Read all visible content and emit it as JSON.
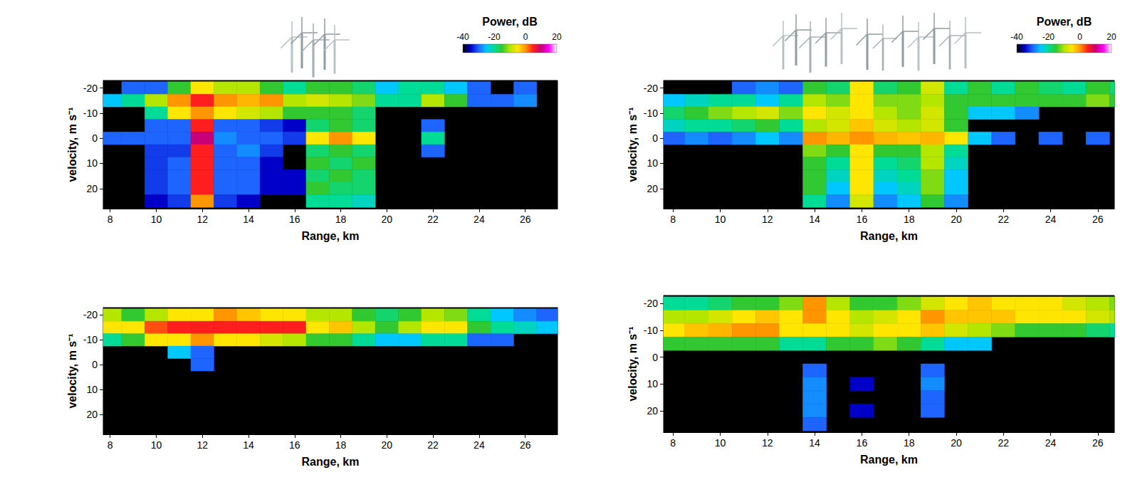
{
  "chart_data": [
    {
      "type": "heatmap",
      "xlabel": "Range, km",
      "ylabel": "velocity, m s⁻¹",
      "xlim": [
        7.7,
        27.4
      ],
      "xticks": [
        8,
        10,
        12,
        14,
        16,
        18,
        20,
        22,
        24,
        26
      ],
      "ylim": [
        -23,
        28
      ],
      "yticks": [
        -20,
        -10,
        0,
        10,
        20
      ],
      "x": [
        8,
        9,
        10,
        11,
        12,
        13,
        14,
        15,
        16,
        17,
        18,
        19,
        20,
        21,
        22,
        23,
        24,
        25,
        26,
        27
      ],
      "y": [
        -20,
        -15,
        -10,
        -5,
        0,
        5,
        10,
        15,
        20,
        25
      ],
      "power": [
        [
          null,
          -30,
          -30,
          -15,
          -5,
          -10,
          -10,
          -15,
          -20,
          -15,
          -15,
          -18,
          -25,
          -20,
          -20,
          -25,
          -30,
          null,
          -30,
          null
        ],
        [
          -25,
          -20,
          -10,
          0,
          5,
          0,
          -2,
          0,
          -10,
          -8,
          -10,
          -12,
          -20,
          -20,
          -10,
          -15,
          -30,
          -30,
          -28,
          null
        ],
        [
          null,
          null,
          -20,
          -5,
          0,
          -5,
          -8,
          -10,
          -15,
          -15,
          -15,
          -18,
          null,
          null,
          null,
          null,
          null,
          null,
          null,
          null
        ],
        [
          null,
          null,
          -30,
          -30,
          5,
          -30,
          -30,
          -32,
          -35,
          -18,
          -15,
          -18,
          null,
          null,
          -30,
          null,
          null,
          null,
          null,
          null
        ],
        [
          -30,
          -30,
          -30,
          -30,
          10,
          -28,
          -30,
          -30,
          -32,
          -5,
          0,
          -5,
          null,
          null,
          -20,
          null,
          null,
          null,
          null,
          null
        ],
        [
          null,
          null,
          -32,
          -32,
          5,
          -30,
          -28,
          -32,
          null,
          -18,
          -15,
          -18,
          null,
          null,
          -30,
          null,
          null,
          null,
          null,
          null
        ],
        [
          null,
          null,
          -32,
          -30,
          5,
          -30,
          -30,
          -35,
          null,
          -15,
          -18,
          -15,
          null,
          null,
          null,
          null,
          null,
          null,
          null,
          null
        ],
        [
          null,
          null,
          -32,
          -30,
          5,
          -30,
          -30,
          -35,
          -35,
          -18,
          -15,
          -18,
          null,
          null,
          null,
          null,
          null,
          null,
          null,
          null
        ],
        [
          null,
          null,
          -32,
          -30,
          5,
          -30,
          -30,
          -35,
          -35,
          -15,
          -18,
          -18,
          null,
          null,
          null,
          null,
          null,
          null,
          null,
          null
        ],
        [
          null,
          null,
          -35,
          -32,
          0,
          -32,
          -35,
          null,
          null,
          -20,
          -20,
          -22,
          null,
          null,
          null,
          null,
          null,
          null,
          null,
          null
        ]
      ],
      "colorbar": {
        "label": "Power, dB",
        "range": [
          -40,
          20
        ],
        "ticks": [
          -40,
          -20,
          0,
          20
        ]
      }
    },
    {
      "type": "heatmap",
      "xlabel": "Range, km",
      "ylabel": "velocity, m s⁻¹",
      "xlim": [
        7.6,
        26.7
      ],
      "xticks": [
        8,
        10,
        12,
        14,
        16,
        18,
        20,
        22,
        24,
        26
      ],
      "ylim": [
        -23,
        28
      ],
      "yticks": [
        -20,
        -10,
        0,
        10,
        20
      ],
      "x": [
        8,
        9,
        10,
        11,
        12,
        13,
        14,
        15,
        16,
        17,
        18,
        19,
        20,
        21,
        22,
        23,
        24,
        25,
        26,
        27
      ],
      "y": [
        -20,
        -15,
        -10,
        -5,
        0,
        5,
        10,
        15,
        20,
        25
      ],
      "power": [
        [
          null,
          null,
          null,
          -30,
          -28,
          -30,
          -15,
          -18,
          -5,
          -18,
          -15,
          -8,
          -20,
          -15,
          -20,
          -15,
          -18,
          -20,
          -15,
          -18
        ],
        [
          -25,
          -22,
          -20,
          -20,
          -25,
          -20,
          -10,
          -12,
          -5,
          -12,
          -12,
          -10,
          -15,
          -15,
          -15,
          -15,
          -15,
          -15,
          -12,
          -15
        ],
        [
          -18,
          -15,
          -12,
          -10,
          -8,
          -12,
          -5,
          -8,
          -5,
          -10,
          -12,
          -8,
          -15,
          -25,
          -25,
          -28,
          null,
          null,
          null,
          null
        ],
        [
          -22,
          -20,
          -20,
          -18,
          -15,
          -20,
          -10,
          -8,
          -3,
          -8,
          -10,
          -8,
          -15,
          null,
          null,
          null,
          null,
          null,
          null,
          null
        ],
        [
          -30,
          -28,
          -30,
          -28,
          -25,
          -28,
          0,
          -2,
          0,
          -2,
          -3,
          -2,
          -5,
          -25,
          -30,
          null,
          -30,
          null,
          -30,
          null
        ],
        [
          null,
          null,
          null,
          null,
          null,
          null,
          -12,
          -15,
          -5,
          -15,
          -15,
          -10,
          -20,
          null,
          null,
          null,
          null,
          null,
          null,
          null
        ],
        [
          null,
          null,
          null,
          null,
          null,
          null,
          -15,
          -20,
          -5,
          -20,
          -18,
          -10,
          -22,
          null,
          null,
          null,
          null,
          null,
          null,
          null
        ],
        [
          null,
          null,
          null,
          null,
          null,
          null,
          -15,
          -22,
          -5,
          -22,
          -20,
          -12,
          -25,
          null,
          null,
          null,
          null,
          null,
          null,
          null
        ],
        [
          null,
          null,
          null,
          null,
          null,
          null,
          -15,
          -25,
          -5,
          -25,
          -22,
          -12,
          -25,
          null,
          null,
          null,
          null,
          null,
          null,
          null
        ],
        [
          null,
          null,
          null,
          null,
          null,
          null,
          -20,
          -28,
          -8,
          -28,
          -25,
          -15,
          -28,
          null,
          null,
          null,
          null,
          null,
          null,
          null
        ]
      ],
      "colorbar": {
        "label": "Power, dB",
        "range": [
          -40,
          20
        ],
        "ticks": [
          -40,
          -20,
          0,
          20
        ]
      }
    },
    {
      "type": "heatmap",
      "xlabel": "Range, km",
      "ylabel": "velocity, m s⁻¹",
      "xlim": [
        7.7,
        27.4
      ],
      "xticks": [
        8,
        10,
        12,
        14,
        16,
        18,
        20,
        22,
        24,
        26
      ],
      "ylim": [
        -23,
        28
      ],
      "yticks": [
        -20,
        -10,
        0,
        10,
        20
      ],
      "x": [
        8,
        9,
        10,
        11,
        12,
        13,
        14,
        15,
        16,
        17,
        18,
        19,
        20,
        21,
        22,
        23,
        24,
        25,
        26,
        27
      ],
      "y": [
        -20,
        -15,
        -10,
        -5,
        0,
        5,
        10,
        15,
        20,
        25
      ],
      "power": [
        [
          -10,
          -15,
          -10,
          -5,
          -5,
          0,
          -3,
          -5,
          -5,
          -10,
          -10,
          -15,
          -18,
          -15,
          -10,
          -12,
          -20,
          -25,
          -28,
          -30
        ],
        [
          -5,
          -5,
          3,
          5,
          5,
          5,
          5,
          5,
          5,
          -5,
          -3,
          -10,
          -15,
          -10,
          -5,
          -5,
          -15,
          -20,
          -22,
          -25
        ],
        [
          -20,
          -15,
          -5,
          -5,
          0,
          -5,
          -5,
          -8,
          -10,
          -15,
          -15,
          -20,
          -25,
          -25,
          -20,
          -20,
          -30,
          -30,
          null,
          null
        ],
        [
          null,
          null,
          null,
          -25,
          -30,
          null,
          null,
          null,
          null,
          null,
          null,
          null,
          null,
          null,
          null,
          null,
          null,
          null,
          null,
          null
        ],
        [
          null,
          null,
          null,
          null,
          -30,
          null,
          null,
          null,
          null,
          null,
          null,
          null,
          null,
          null,
          null,
          null,
          null,
          null,
          null,
          null
        ],
        [
          null,
          null,
          null,
          null,
          null,
          null,
          null,
          null,
          null,
          null,
          null,
          null,
          null,
          null,
          null,
          null,
          null,
          null,
          null,
          null
        ],
        [
          null,
          null,
          null,
          null,
          null,
          null,
          null,
          null,
          null,
          null,
          null,
          null,
          null,
          null,
          null,
          null,
          null,
          null,
          null,
          null
        ],
        [
          null,
          null,
          null,
          null,
          null,
          null,
          null,
          null,
          null,
          null,
          null,
          null,
          null,
          null,
          null,
          null,
          null,
          null,
          null,
          null
        ],
        [
          null,
          null,
          null,
          null,
          null,
          null,
          null,
          null,
          null,
          null,
          null,
          null,
          null,
          null,
          null,
          null,
          null,
          null,
          null,
          null
        ],
        [
          null,
          null,
          null,
          null,
          null,
          null,
          null,
          null,
          null,
          null,
          null,
          null,
          null,
          null,
          null,
          null,
          null,
          null,
          null,
          null
        ]
      ]
    },
    {
      "type": "heatmap",
      "xlabel": "Range, km",
      "ylabel": "velocity, m s⁻¹",
      "xlim": [
        7.6,
        26.7
      ],
      "xticks": [
        8,
        10,
        12,
        14,
        16,
        18,
        20,
        22,
        24,
        26
      ],
      "ylim": [
        -23,
        28
      ],
      "yticks": [
        -20,
        -10,
        0,
        10,
        20
      ],
      "x": [
        8,
        9,
        10,
        11,
        12,
        13,
        14,
        15,
        16,
        17,
        18,
        19,
        20,
        21,
        22,
        23,
        24,
        25,
        26,
        27
      ],
      "y": [
        -20,
        -15,
        -10,
        -5,
        0,
        5,
        10,
        15,
        20,
        25
      ],
      "power": [
        [
          -20,
          -20,
          -18,
          -15,
          -15,
          -12,
          0,
          -10,
          -15,
          -15,
          -12,
          -8,
          -5,
          -3,
          -5,
          -5,
          -5,
          -8,
          -10,
          -12
        ],
        [
          -10,
          -10,
          -8,
          -5,
          -3,
          -5,
          0,
          -5,
          -10,
          -8,
          -5,
          0,
          -3,
          -3,
          -3,
          -5,
          -5,
          -5,
          -8,
          -10
        ],
        [
          -5,
          -3,
          -2,
          0,
          0,
          -5,
          -5,
          -5,
          -8,
          -5,
          -5,
          -3,
          -8,
          -10,
          -12,
          -15,
          -15,
          -15,
          -18,
          -20
        ],
        [
          -15,
          -15,
          -15,
          -15,
          -15,
          -20,
          -20,
          -15,
          -15,
          -12,
          -15,
          -20,
          -25,
          -25,
          null,
          null,
          null,
          null,
          null,
          null
        ],
        [
          null,
          null,
          null,
          null,
          null,
          null,
          null,
          null,
          null,
          null,
          null,
          null,
          null,
          null,
          null,
          null,
          null,
          null,
          null,
          null
        ],
        [
          null,
          null,
          null,
          null,
          null,
          null,
          -30,
          null,
          null,
          null,
          null,
          -30,
          null,
          null,
          null,
          null,
          null,
          null,
          null,
          null
        ],
        [
          null,
          null,
          null,
          null,
          null,
          null,
          -28,
          null,
          -35,
          null,
          null,
          -28,
          null,
          null,
          null,
          null,
          null,
          null,
          null,
          null
        ],
        [
          null,
          null,
          null,
          null,
          null,
          null,
          -28,
          null,
          null,
          null,
          null,
          -30,
          null,
          null,
          null,
          null,
          null,
          null,
          null,
          null
        ],
        [
          null,
          null,
          null,
          null,
          null,
          null,
          -28,
          null,
          -35,
          null,
          null,
          -30,
          null,
          null,
          null,
          null,
          null,
          null,
          null,
          null
        ],
        [
          null,
          null,
          null,
          null,
          null,
          null,
          -30,
          null,
          null,
          null,
          null,
          null,
          null,
          null,
          null,
          null,
          null,
          null,
          null,
          null
        ]
      ]
    }
  ]
}
